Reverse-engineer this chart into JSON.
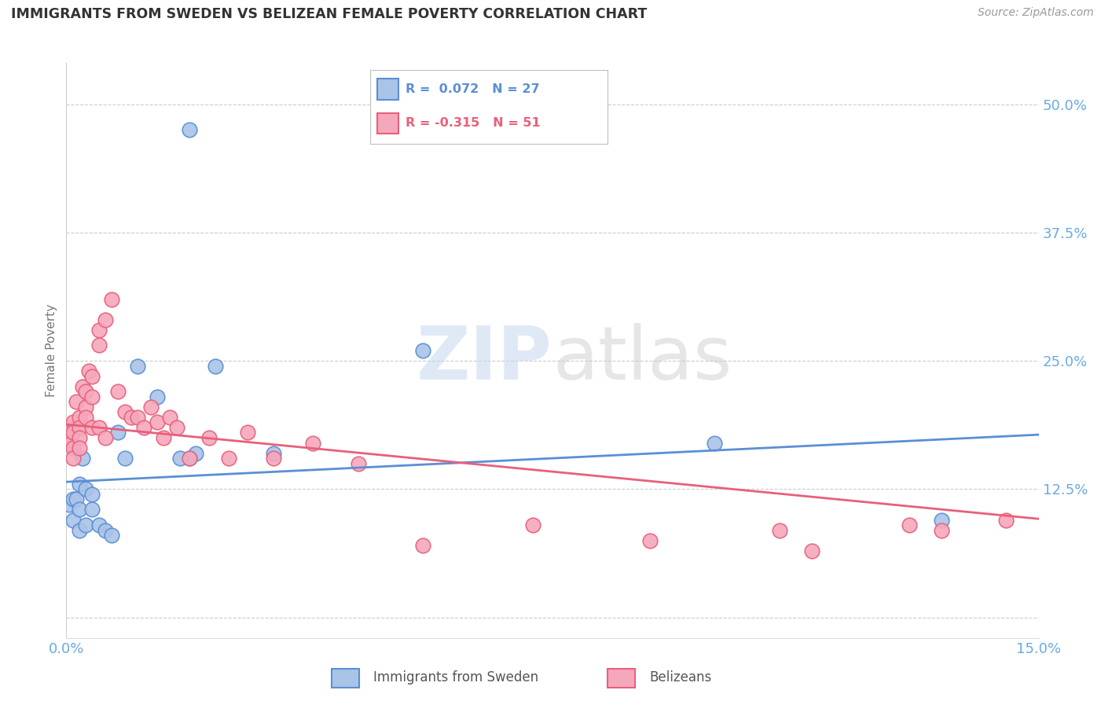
{
  "title": "IMMIGRANTS FROM SWEDEN VS BELIZEAN FEMALE POVERTY CORRELATION CHART",
  "source": "Source: ZipAtlas.com",
  "ylabel": "Female Poverty",
  "yticks": [
    0.0,
    0.125,
    0.25,
    0.375,
    0.5
  ],
  "ytick_labels": [
    "",
    "12.5%",
    "25.0%",
    "37.5%",
    "50.0%"
  ],
  "xlim": [
    0.0,
    0.15
  ],
  "ylim": [
    -0.02,
    0.54
  ],
  "color_blue": "#aac4e8",
  "color_pink": "#f5a8bc",
  "color_blue_line": "#5a8fd4",
  "color_pink_line": "#e8607a",
  "color_axis_labels": "#6baae0",
  "sweden_x": [
    0.0005,
    0.001,
    0.001,
    0.0015,
    0.002,
    0.002,
    0.002,
    0.0025,
    0.003,
    0.003,
    0.004,
    0.004,
    0.005,
    0.006,
    0.007,
    0.008,
    0.009,
    0.011,
    0.014,
    0.02,
    0.023,
    0.032,
    0.055,
    0.1,
    0.135,
    0.019,
    0.0175
  ],
  "sweden_y": [
    0.11,
    0.115,
    0.095,
    0.115,
    0.105,
    0.13,
    0.085,
    0.155,
    0.09,
    0.125,
    0.12,
    0.105,
    0.09,
    0.085,
    0.08,
    0.18,
    0.155,
    0.245,
    0.215,
    0.16,
    0.245,
    0.16,
    0.26,
    0.17,
    0.095,
    0.155,
    0.155
  ],
  "sweden_outlier_x": [
    0.019
  ],
  "sweden_outlier_y": [
    0.475
  ],
  "belize_x": [
    0.0003,
    0.0005,
    0.0007,
    0.001,
    0.001,
    0.001,
    0.001,
    0.0015,
    0.002,
    0.002,
    0.002,
    0.002,
    0.0025,
    0.003,
    0.003,
    0.003,
    0.0035,
    0.004,
    0.004,
    0.004,
    0.005,
    0.005,
    0.005,
    0.006,
    0.006,
    0.007,
    0.008,
    0.009,
    0.01,
    0.011,
    0.012,
    0.013,
    0.014,
    0.015,
    0.016,
    0.017,
    0.019,
    0.022,
    0.025,
    0.028,
    0.032,
    0.038,
    0.045,
    0.055,
    0.072,
    0.09,
    0.11,
    0.115,
    0.13,
    0.135,
    0.145
  ],
  "belize_y": [
    0.185,
    0.175,
    0.17,
    0.19,
    0.18,
    0.165,
    0.155,
    0.21,
    0.195,
    0.185,
    0.175,
    0.165,
    0.225,
    0.22,
    0.205,
    0.195,
    0.24,
    0.235,
    0.215,
    0.185,
    0.28,
    0.265,
    0.185,
    0.29,
    0.175,
    0.31,
    0.22,
    0.2,
    0.195,
    0.195,
    0.185,
    0.205,
    0.19,
    0.175,
    0.195,
    0.185,
    0.155,
    0.175,
    0.155,
    0.18,
    0.155,
    0.17,
    0.15,
    0.07,
    0.09,
    0.075,
    0.085,
    0.065,
    0.09,
    0.085,
    0.095
  ],
  "blue_trend_x": [
    0.0,
    0.15
  ],
  "blue_trend_y": [
    0.132,
    0.178
  ],
  "pink_trend_x": [
    0.0,
    0.15
  ],
  "pink_trend_y": [
    0.188,
    0.096
  ]
}
